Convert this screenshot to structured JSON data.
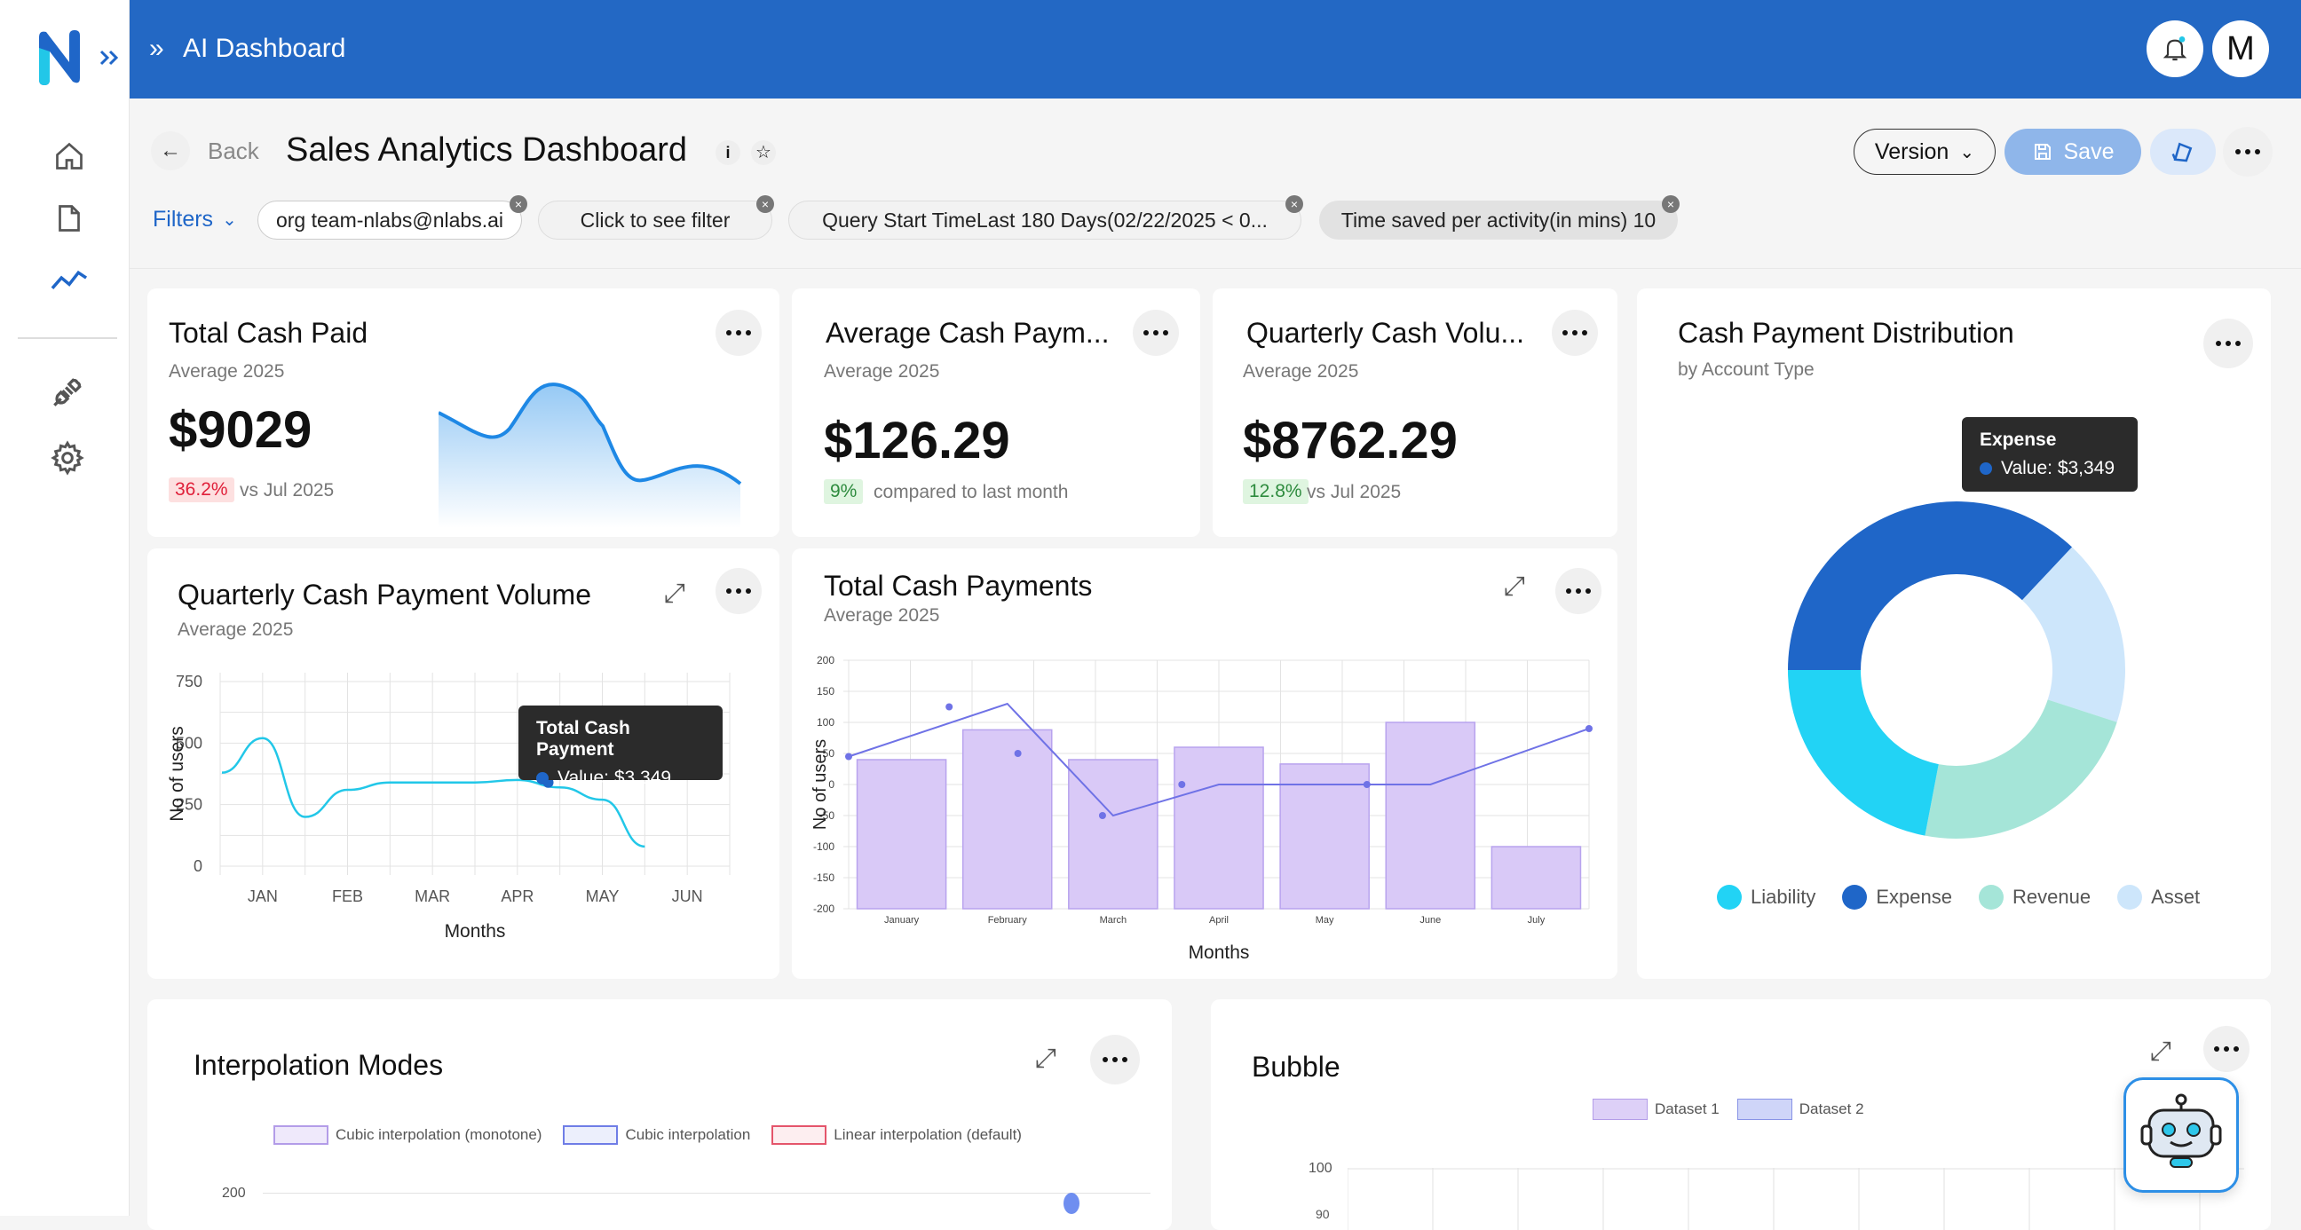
{
  "app": {
    "title": "AI Dashboard",
    "avatar_letter": "M"
  },
  "header": {
    "back_label": "Back",
    "page_title": "Sales Analytics Dashboard",
    "version_label": "Version",
    "save_label": "Save"
  },
  "filters": {
    "label": "Filters",
    "chips": [
      "org team-nlabs@nlabs.ai",
      "Click to see filter",
      "Query Start TimeLast 180 Days(02/22/2025 < 0...",
      "Time saved per activity(in mins) 10"
    ]
  },
  "kpis": [
    {
      "title": "Total Cash Paid",
      "subtitle": "Average 2025",
      "value": "$9029",
      "change": "36.2%",
      "change_text": "vs Jul 2025",
      "trend": "down"
    },
    {
      "title": "Average Cash Paym...",
      "subtitle": "Average 2025",
      "value": "$126.29",
      "change": "9%",
      "change_text": "compared to last month",
      "trend": "up"
    },
    {
      "title": "Quarterly Cash Volu...",
      "subtitle": "Average 2025",
      "value": "$8762.29",
      "change": "12.8%",
      "change_text": "vs Jul 2025",
      "trend": "up"
    }
  ],
  "colors": {
    "accent": "#2368c4",
    "line": "#1e88e5",
    "cyan": "#22c7e8",
    "purple": "#7b61ff",
    "bar": "#d9c9f7",
    "positive_bg": "#dff5e0",
    "negative_bg": "#fde0e0",
    "positive": "#2e8b3e",
    "negative": "#e0203a"
  },
  "line_chart": {
    "title": "Quarterly Cash Payment Volume",
    "subtitle": "Average 2025",
    "tooltip_title": "Total Cash Payment",
    "tooltip_value": "Value: $3,349",
    "chart_data": {
      "type": "line",
      "categories": [
        "JAN",
        "FEB",
        "MAR",
        "APR",
        "MAY",
        "JUN"
      ],
      "y_ticks": [
        "750",
        "500",
        "250",
        "0"
      ],
      "ylabel": "No of users",
      "xlabel": "Months",
      "ylim": [
        0,
        750
      ],
      "x": [
        0,
        0.5,
        1,
        1.5,
        2,
        2.5,
        3,
        3.5,
        4,
        4.5,
        5
      ],
      "values": [
        380,
        520,
        200,
        310,
        340,
        340,
        340,
        350,
        320,
        270,
        80
      ]
    }
  },
  "combo_chart": {
    "title": "Total Cash Payments",
    "subtitle": "Average 2025",
    "chart_data": {
      "type": "bar",
      "categories": [
        "January",
        "February",
        "March",
        "April",
        "May",
        "June",
        "July"
      ],
      "bar_values": [
        40,
        88,
        40,
        60,
        33,
        100,
        -100
      ],
      "line_values": [
        45,
        130,
        -50,
        0,
        0,
        0,
        90
      ],
      "scatter_values": [
        125,
        50,
        -50,
        0,
        0
      ],
      "y_ticks": [
        "200",
        "150",
        "100",
        "50",
        "0",
        "-50",
        "-100",
        "-150",
        "-200"
      ],
      "ylim": [
        -200,
        200
      ],
      "ylabel": "No of users",
      "xlabel": "Months"
    }
  },
  "donut": {
    "title": "Cash Payment Distribution",
    "subtitle": "by Account Type",
    "tooltip_title": "Expense",
    "tooltip_value": "Value: $3,349",
    "chart_data": {
      "type": "pie",
      "labels": [
        "Liability",
        "Expense",
        "Revenue",
        "Asset"
      ],
      "values": [
        22,
        37,
        23,
        18
      ],
      "colors": [
        "#22d3f5",
        "#1f66c8",
        "#a5e5d8",
        "#cde6fb"
      ]
    },
    "legend": [
      "Liability",
      "Expense",
      "Revenue",
      "Asset"
    ]
  },
  "interp": {
    "title": "Interpolation Modes",
    "legend": [
      "Cubic interpolation (monotone)",
      "Cubic interpolation",
      "Linear interpolation (default)"
    ],
    "y_tick": "200"
  },
  "bubble": {
    "title": "Bubble",
    "legend": [
      "Dataset 1",
      "Dataset 2"
    ],
    "y_tick": "100",
    "y_tick2": "90"
  }
}
